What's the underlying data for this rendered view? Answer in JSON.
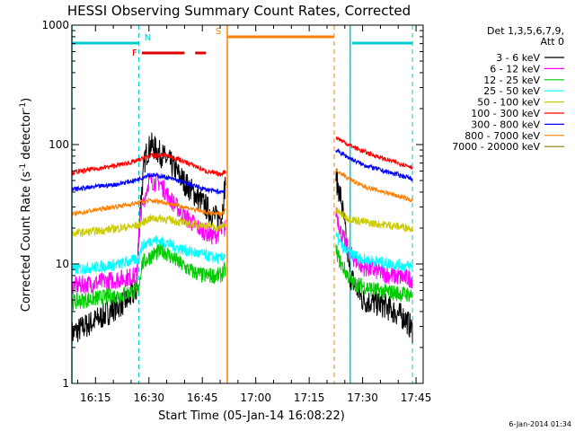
{
  "chart_data": {
    "type": "line",
    "title": "HESSI Observing Summary Count Rates, Corrected",
    "xlabel": "Start Time (05-Jan-14 16:08:22)",
    "ylabel_main": "Corrected Count Rate (s",
    "ylabel_sup1": "-1",
    "ylabel_mid": " detector",
    "ylabel_sup2": "-1",
    "ylabel_end": ")",
    "yscale": "log",
    "xlim": [
      "16:08:22",
      "17:47:00"
    ],
    "ylim": [
      1,
      1000
    ],
    "xticks": [
      "16:15",
      "16:30",
      "16:45",
      "17:00",
      "17:15",
      "17:30",
      "17:45"
    ],
    "yticks": [
      "1",
      "10",
      "100",
      "1000"
    ],
    "legend_header": [
      "Det 1,3,5,6,7,9,",
      "Att 0"
    ],
    "legend_position": "right",
    "footer_date": "6-Jan-2014 01:34",
    "flags": [
      {
        "label": "N",
        "color": "#00cccc",
        "segments": [
          [
            "16:08:22",
            "16:27:10"
          ],
          [
            "17:27:00",
            "17:44:00"
          ]
        ]
      },
      {
        "label": "F",
        "color": "#dd0000",
        "segments": [
          [
            "16:28:00",
            "16:40:00"
          ],
          [
            "16:43:00",
            "16:46:00"
          ]
        ]
      },
      {
        "label": "S",
        "color": "#ff7f00",
        "segments": [
          [
            "16:52:00",
            "17:22:00"
          ]
        ]
      }
    ],
    "vlines": [
      {
        "time": "16:08:22",
        "color": "#00cccc",
        "style": "solid"
      },
      {
        "time": "16:27:10",
        "color": "#00cccc",
        "style": "dashed"
      },
      {
        "time": "16:52:00",
        "color": "#ff7f00",
        "style": "solid"
      },
      {
        "time": "17:22:00",
        "color": "#ff7f00",
        "style": "dashed"
      },
      {
        "time": "17:26:30",
        "color": "#00cccc",
        "style": "solid"
      },
      {
        "time": "17:44:00",
        "color": "#00cccc",
        "style": "dashed"
      }
    ],
    "series": [
      {
        "name": "3 - 6 keV",
        "color": "#000000",
        "segA": [
          [
            "16:08:22",
            2.6
          ],
          [
            "16:12:00",
            3.0
          ],
          [
            "16:16:00",
            3.5
          ],
          [
            "16:20:00",
            4.2
          ],
          [
            "16:24:00",
            5.0
          ],
          [
            "16:26:30",
            6.0
          ],
          [
            "16:27:30",
            30
          ],
          [
            "16:29:00",
            80
          ],
          [
            "16:30:30",
            100
          ],
          [
            "16:33:00",
            85
          ],
          [
            "16:36:00",
            70
          ],
          [
            "16:40:00",
            48
          ],
          [
            "16:44:00",
            35
          ],
          [
            "16:47:00",
            28
          ],
          [
            "16:49:00",
            24
          ],
          [
            "16:50:30",
            26
          ],
          [
            "16:51:30",
            50
          ]
        ],
        "segB": [
          [
            "17:22:30",
            52
          ],
          [
            "17:24:00",
            35
          ],
          [
            "17:25:00",
            20
          ],
          [
            "17:26:30",
            8
          ],
          [
            "17:30:00",
            5
          ],
          [
            "17:36:00",
            4.5
          ],
          [
            "17:42:00",
            3.5
          ],
          [
            "17:44:00",
            2.8
          ]
        ]
      },
      {
        "name": "6 - 12 keV",
        "color": "#ff00ff",
        "segA": [
          [
            "16:08:22",
            6.5
          ],
          [
            "16:16:00",
            7
          ],
          [
            "16:22:00",
            7.5
          ],
          [
            "16:26:30",
            8
          ],
          [
            "16:27:30",
            25
          ],
          [
            "16:30:00",
            50
          ],
          [
            "16:33:00",
            48
          ],
          [
            "16:36:00",
            35
          ],
          [
            "16:40:00",
            25
          ],
          [
            "16:44:00",
            20
          ],
          [
            "16:48:00",
            17
          ],
          [
            "16:51:30",
            20
          ]
        ],
        "segB": [
          [
            "17:22:30",
            28
          ],
          [
            "17:24:00",
            18
          ],
          [
            "17:26:30",
            12
          ],
          [
            "17:30:00",
            9.5
          ],
          [
            "17:38:00",
            8
          ],
          [
            "17:44:00",
            7.5
          ]
        ]
      },
      {
        "name": "12 - 25 keV",
        "color": "#00cc00",
        "segA": [
          [
            "16:08:22",
            4.8
          ],
          [
            "16:16:00",
            5.2
          ],
          [
            "16:22:00",
            5.5
          ],
          [
            "16:27:00",
            6
          ],
          [
            "16:28:00",
            10
          ],
          [
            "16:31:00",
            12
          ],
          [
            "16:34:00",
            13
          ],
          [
            "16:37:00",
            11
          ],
          [
            "16:41:00",
            9
          ],
          [
            "16:45:00",
            8
          ],
          [
            "16:50:00",
            8
          ],
          [
            "16:51:30",
            9
          ]
        ],
        "segB": [
          [
            "17:22:30",
            13
          ],
          [
            "17:24:00",
            10
          ],
          [
            "17:27:00",
            7
          ],
          [
            "17:34:00",
            6
          ],
          [
            "17:44:00",
            5.5
          ]
        ]
      },
      {
        "name": "25 - 50 keV",
        "color": "#00ffff",
        "segA": [
          [
            "16:08:22",
            9
          ],
          [
            "16:16:00",
            9.5
          ],
          [
            "16:22:00",
            10
          ],
          [
            "16:27:00",
            11
          ],
          [
            "16:28:00",
            14
          ],
          [
            "16:31:00",
            16
          ],
          [
            "16:35:00",
            15
          ],
          [
            "16:40:00",
            13
          ],
          [
            "16:45:00",
            12
          ],
          [
            "16:50:00",
            11
          ],
          [
            "16:51:30",
            12
          ]
        ],
        "segB": [
          [
            "17:22:30",
            17
          ],
          [
            "17:25:00",
            13
          ],
          [
            "17:30:00",
            11
          ],
          [
            "17:38:00",
            10
          ],
          [
            "17:44:00",
            9.5
          ]
        ]
      },
      {
        "name": "50 - 100 keV",
        "color": "#cccc00",
        "segA": [
          [
            "16:08:22",
            18
          ],
          [
            "16:16:00",
            19
          ],
          [
            "16:22:00",
            20
          ],
          [
            "16:27:00",
            21
          ],
          [
            "16:30:00",
            24
          ],
          [
            "16:34:00",
            24
          ],
          [
            "16:40:00",
            22
          ],
          [
            "16:46:00",
            21
          ],
          [
            "16:50:00",
            20
          ],
          [
            "16:51:30",
            22
          ]
        ],
        "segB": [
          [
            "17:22:30",
            28
          ],
          [
            "17:26:00",
            24
          ],
          [
            "17:32:00",
            22
          ],
          [
            "17:38:00",
            21
          ],
          [
            "17:44:00",
            20
          ]
        ]
      },
      {
        "name": "100 - 300 keV",
        "color": "#ff0000",
        "segA": [
          [
            "16:08:22",
            58
          ],
          [
            "16:14:00",
            62
          ],
          [
            "16:20:00",
            66
          ],
          [
            "16:26:00",
            72
          ],
          [
            "16:30:00",
            80
          ],
          [
            "16:34:00",
            82
          ],
          [
            "16:38:00",
            76
          ],
          [
            "16:42:00",
            68
          ],
          [
            "16:46:00",
            60
          ],
          [
            "16:50:00",
            56
          ],
          [
            "16:51:30",
            60
          ]
        ],
        "segB": [
          [
            "17:22:30",
            115
          ],
          [
            "17:26:00",
            100
          ],
          [
            "17:30:00",
            88
          ],
          [
            "17:36:00",
            76
          ],
          [
            "17:40:00",
            70
          ],
          [
            "17:44:00",
            65
          ]
        ]
      },
      {
        "name": "300 - 800 keV",
        "color": "#0000ff",
        "segA": [
          [
            "16:08:22",
            42
          ],
          [
            "16:14:00",
            44
          ],
          [
            "16:20:00",
            46
          ],
          [
            "16:26:00",
            50
          ],
          [
            "16:30:00",
            56
          ],
          [
            "16:34:00",
            54
          ],
          [
            "16:38:00",
            50
          ],
          [
            "16:42:00",
            46
          ],
          [
            "16:46:00",
            42
          ],
          [
            "16:50:00",
            40
          ],
          [
            "16:51:30",
            42
          ]
        ],
        "segB": [
          [
            "17:22:30",
            90
          ],
          [
            "17:26:00",
            78
          ],
          [
            "17:30:00",
            68
          ],
          [
            "17:36:00",
            60
          ],
          [
            "17:40:00",
            56
          ],
          [
            "17:44:00",
            52
          ]
        ]
      },
      {
        "name": "800 - 7000 keV",
        "color": "#ff8000",
        "segA": [
          [
            "16:08:22",
            26
          ],
          [
            "16:14:00",
            28
          ],
          [
            "16:20:00",
            30
          ],
          [
            "16:26:00",
            32
          ],
          [
            "16:30:00",
            34
          ],
          [
            "16:34:00",
            33
          ],
          [
            "16:38:00",
            31
          ],
          [
            "16:42:00",
            29
          ],
          [
            "16:46:00",
            27
          ],
          [
            "16:50:00",
            26
          ],
          [
            "16:51:30",
            28
          ]
        ],
        "segB": [
          [
            "17:22:30",
            62
          ],
          [
            "17:26:00",
            52
          ],
          [
            "17:30:00",
            45
          ],
          [
            "17:36:00",
            40
          ],
          [
            "17:40:00",
            37
          ],
          [
            "17:44:00",
            34
          ]
        ]
      },
      {
        "name": "7000 - 20000 keV",
        "color": "#808000",
        "segA": [],
        "segB": []
      }
    ]
  }
}
